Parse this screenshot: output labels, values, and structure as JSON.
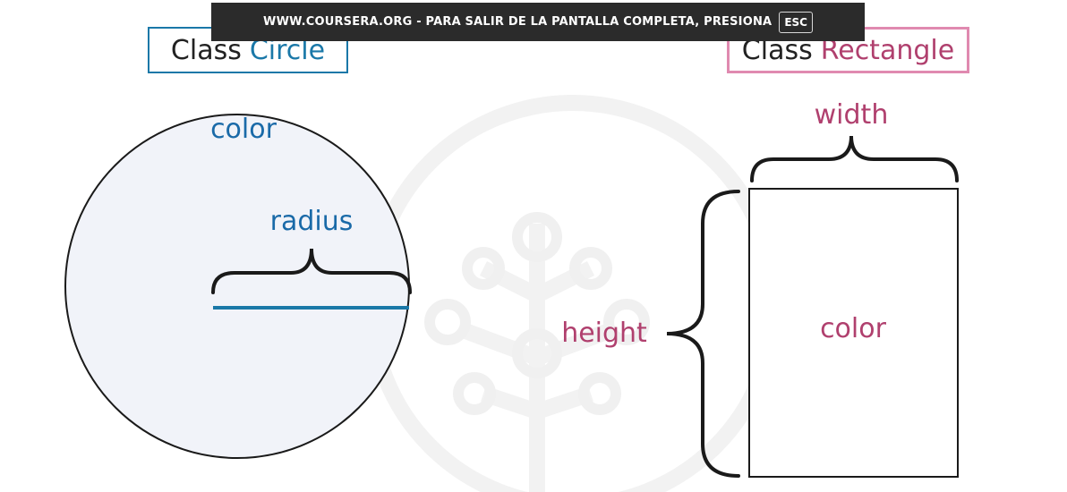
{
  "notice": {
    "message": "WWW.COURSERA.ORG - PARA SALIR DE LA PANTALLA COMPLETA, PRESIONA",
    "key": "ESC"
  },
  "circle_class": {
    "keyword": "Class",
    "name": "Circle",
    "attributes": {
      "color": "color",
      "radius": "radius"
    }
  },
  "rectangle_class": {
    "keyword": "Class",
    "name": "Rectangle",
    "attributes": {
      "width": "width",
      "height": "height",
      "color": "color"
    }
  },
  "colors": {
    "circle_accent": "#1a78a8",
    "circle_text": "#1a6aa8",
    "circle_fill": "#f1f3f9",
    "rect_border": "#e08ab0",
    "rect_text": "#b0406e",
    "outline": "#1a1a1a",
    "watermark": "#f3f3f3"
  }
}
